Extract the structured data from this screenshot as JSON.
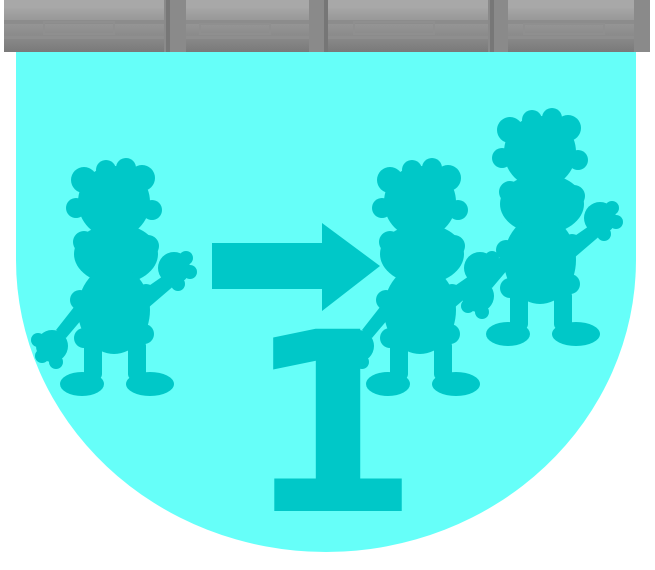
{
  "powerup": {
    "name": "extra-life-card",
    "count_label": "1"
  },
  "icons": {
    "before": "cat-silhouette-icon",
    "arrow": "arrow-right-icon",
    "after": "double-cat-silhouette-icon"
  },
  "colors": {
    "banner_fill": "#66fff9",
    "silhouette": "#00c8c8",
    "bar_dark": "#7f7f7f",
    "bar_light": "#a6a6a6"
  }
}
